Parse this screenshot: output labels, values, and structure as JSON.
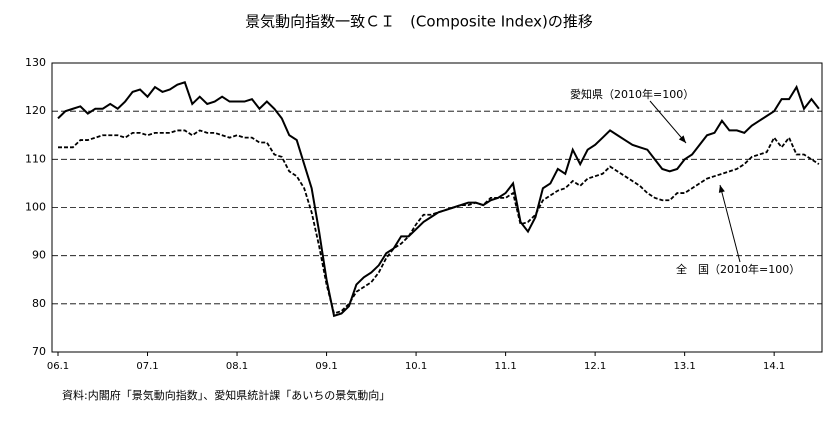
{
  "chart_data": {
    "type": "line",
    "title": "景気動向指数一致ＣＩ　(Composite Index)の推移",
    "source": "資料:内閣府「景気動向指数」、愛知県統計課「あいちの景気動向」",
    "categories": [
      "06.1",
      null,
      null,
      null,
      null,
      null,
      null,
      null,
      null,
      null,
      null,
      null,
      "07.1",
      null,
      null,
      null,
      null,
      null,
      null,
      null,
      null,
      null,
      null,
      null,
      "08.1",
      null,
      null,
      null,
      null,
      null,
      null,
      null,
      null,
      null,
      null,
      null,
      "09.1",
      null,
      null,
      null,
      null,
      null,
      null,
      null,
      null,
      null,
      null,
      null,
      "10.1",
      null,
      null,
      null,
      null,
      null,
      null,
      null,
      null,
      null,
      null,
      null,
      "11.1",
      null,
      null,
      null,
      null,
      null,
      null,
      null,
      null,
      null,
      null,
      null,
      "12.1",
      null,
      null,
      null,
      null,
      null,
      null,
      null,
      null,
      null,
      null,
      null,
      "13.1",
      null,
      null,
      null,
      null,
      null,
      null,
      null,
      null,
      null,
      null,
      null,
      "14.1",
      null,
      null,
      null,
      null,
      null,
      null
    ],
    "series": [
      {
        "name": "愛知県（2010年=100）",
        "color": "#000000",
        "line_style": "solid",
        "values": [
          118.5,
          120,
          120.5,
          121,
          119.5,
          120.5,
          120.5,
          121.5,
          120.5,
          122,
          124,
          124.5,
          123,
          125,
          124,
          124.5,
          125.5,
          126,
          121.5,
          123,
          121.5,
          122,
          123,
          122,
          122,
          122,
          122.5,
          120.5,
          122,
          120.5,
          118.5,
          115,
          114,
          109,
          104,
          95,
          85,
          77.5,
          78,
          79.5,
          84,
          85.5,
          86.5,
          88,
          90.5,
          91.5,
          94,
          94,
          95.5,
          97,
          98,
          99,
          99.5,
          100,
          100.5,
          101,
          101,
          100.5,
          101.5,
          102,
          103,
          105,
          97,
          95,
          98,
          104,
          105,
          108,
          107,
          112,
          109,
          112,
          113,
          114.5,
          116,
          115,
          114,
          113,
          112.5,
          112,
          110,
          108,
          107.5,
          108,
          110,
          111,
          113,
          115,
          115.5,
          118,
          116,
          116,
          115.5,
          117,
          118,
          119,
          120,
          122.5,
          122.5,
          125,
          120.5,
          122.5,
          120.5
        ]
      },
      {
        "name": "全　国（2010年=100）",
        "color": "#000000",
        "line_style": "dashed",
        "values": [
          112.5,
          112.5,
          112.5,
          114,
          114,
          114.5,
          115,
          115,
          115,
          114.5,
          115.5,
          115.5,
          115,
          115.5,
          115.5,
          115.5,
          116,
          116,
          115,
          116,
          115.5,
          115.5,
          115,
          114.5,
          115,
          114.5,
          114.5,
          113.5,
          113.5,
          111,
          110.5,
          107.5,
          106.5,
          104,
          99,
          92,
          84,
          78,
          78.5,
          80,
          82.5,
          83.5,
          84.5,
          86.5,
          89.5,
          91.5,
          92.5,
          94,
          96.5,
          98.5,
          98.5,
          99,
          99.5,
          100,
          100.5,
          100.5,
          101,
          100.5,
          102,
          102,
          102,
          103,
          96.5,
          97,
          98.5,
          101.5,
          102.5,
          103.5,
          104,
          105.5,
          104.5,
          106,
          106.5,
          107,
          108.5,
          107.5,
          106.5,
          105.5,
          104.5,
          103,
          102,
          101.5,
          101.5,
          103,
          103,
          104,
          105,
          106,
          106.5,
          107,
          107.5,
          108,
          109,
          110.5,
          111,
          111.5,
          114.5,
          112.5,
          114.5,
          111,
          111,
          110,
          109
        ]
      }
    ],
    "ylim": [
      70,
      130
    ],
    "yticks": [
      70,
      80,
      90,
      100,
      110,
      120,
      130
    ],
    "grid": true
  }
}
